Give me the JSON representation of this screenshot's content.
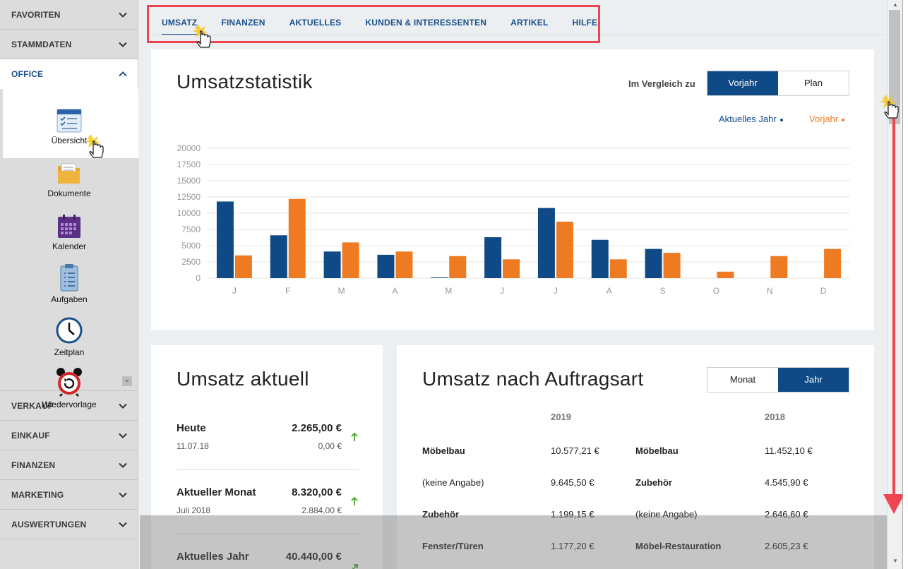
{
  "sidebar": {
    "sections_top": [
      {
        "label": "FAVORITEN"
      },
      {
        "label": "STAMMDATEN"
      }
    ],
    "office": {
      "label": "OFFICE",
      "items": [
        {
          "label": "Übersicht",
          "icon": "overview-icon"
        },
        {
          "label": "Dokumente",
          "icon": "folder-icon"
        },
        {
          "label": "Kalender",
          "icon": "calendar-icon"
        },
        {
          "label": "Aufgaben",
          "icon": "clipboard-icon"
        },
        {
          "label": "Zeitplan",
          "icon": "clock-icon"
        },
        {
          "label": "Wiedervorlage",
          "icon": "alarm-clock-icon"
        }
      ]
    },
    "sections_bottom": [
      {
        "label": "VERKAUF"
      },
      {
        "label": "EINKAUF"
      },
      {
        "label": "FINANZEN"
      },
      {
        "label": "MARKETING"
      },
      {
        "label": "AUSWERTUNGEN"
      }
    ]
  },
  "tabs": [
    {
      "label": "UMSATZ",
      "active": true
    },
    {
      "label": "FINANZEN"
    },
    {
      "label": "AKTUELLES"
    },
    {
      "label": "KUNDEN & INTERESSENTEN"
    },
    {
      "label": "ARTIKEL"
    },
    {
      "label": "HILFE"
    }
  ],
  "stats": {
    "title": "Umsatzstatistik",
    "compare_label": "Im Vergleich zu",
    "toggle": [
      {
        "label": "Vorjahr",
        "active": true
      },
      {
        "label": "Plan"
      }
    ],
    "legend": [
      {
        "label": "Aktuelles Jahr",
        "color": "#0f4a86"
      },
      {
        "label": "Vorjahr",
        "color": "#ee7b22"
      }
    ]
  },
  "chart_data": {
    "type": "bar",
    "categories": [
      "J",
      "F",
      "M",
      "A",
      "M",
      "J",
      "J",
      "A",
      "S",
      "O",
      "N",
      "D"
    ],
    "series": [
      {
        "name": "Aktuelles Jahr",
        "color": "#0f4a86",
        "values": [
          11800,
          6600,
          4100,
          3600,
          100,
          6300,
          10800,
          5900,
          4500,
          0,
          0,
          0
        ]
      },
      {
        "name": "Vorjahr",
        "color": "#ee7b22",
        "values": [
          3500,
          12200,
          5500,
          4100,
          3400,
          2900,
          8700,
          2900,
          3900,
          1000,
          3400,
          4500
        ]
      }
    ],
    "yticks": [
      "20000",
      "17500",
      "15000",
      "12500",
      "10000",
      "7500",
      "5000",
      "2500",
      "0"
    ],
    "ylim": [
      0,
      20000
    ],
    "grid": true
  },
  "current": {
    "title": "Umsatz aktuell",
    "rows": [
      {
        "label": "Heute",
        "value": "2.265,00 €",
        "sub": "11.07.18",
        "prev": "0,00 €"
      },
      {
        "label": "Aktueller Monat",
        "value": "8.320,00 €",
        "sub": "Juli 2018",
        "prev": "2.884,00 €"
      },
      {
        "label": "Aktuelles Jahr",
        "value": "40.440,00 €"
      }
    ]
  },
  "ordertype": {
    "title": "Umsatz nach Auftragsart",
    "toggle": [
      {
        "label": "Monat"
      },
      {
        "label": "Jahr",
        "active": true
      }
    ],
    "year_a": "2019",
    "year_b": "2018",
    "rows": [
      {
        "a_label": "Möbelbau",
        "a_value": "10.577,21 €",
        "b_label": "Möbelbau",
        "b_value": "11.452,10 €"
      },
      {
        "a_label": "(keine Angabe)",
        "a_value": "9.645,50 €",
        "b_label": "Zubehör",
        "b_value": "4.545,90 €"
      },
      {
        "a_label": "Zubehör",
        "a_value": "1.199,15 €",
        "b_label": "(keine Angabe)",
        "b_value": "2.646,60 €"
      },
      {
        "a_label": "Fenster/Türen",
        "a_value": "1.177,20 €",
        "b_label": "Möbel-Restauration",
        "b_value": "2.605,23 €"
      }
    ]
  }
}
